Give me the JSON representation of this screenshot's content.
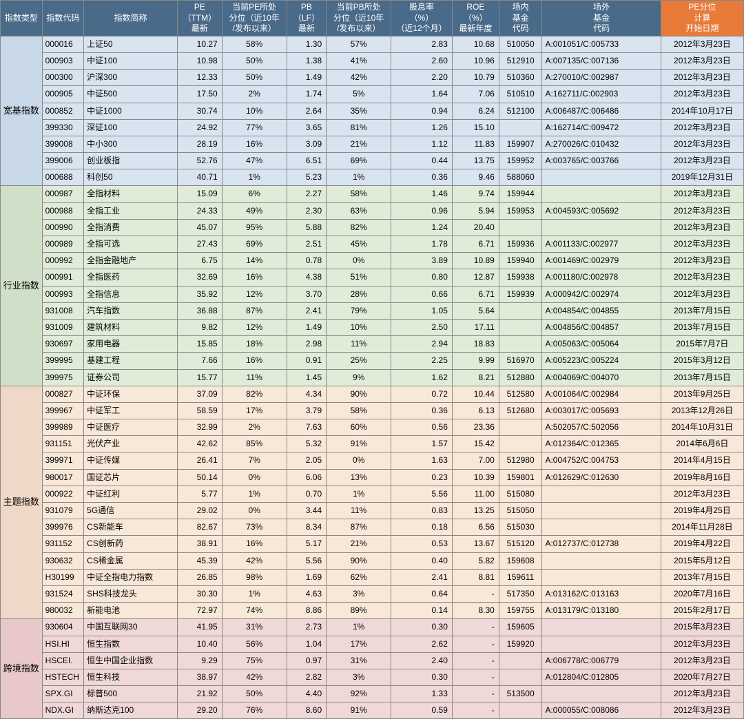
{
  "columns": [
    {
      "label": "指数类型",
      "width": 58
    },
    {
      "label": "指数代码",
      "width": 58
    },
    {
      "label": "指数简称",
      "width": 130
    },
    {
      "label": "PE\n（TTM）\n最新",
      "width": 62
    },
    {
      "label": "当前PE所处\n分位（近10年\n/发布以来）",
      "width": 90
    },
    {
      "label": "PB\n（LF）\n最新",
      "width": 55
    },
    {
      "label": "当前PB所处\n分位（近10年\n/发布以来）",
      "width": 90
    },
    {
      "label": "股息率\n（%）\n（近12个月）",
      "width": 85
    },
    {
      "label": "ROE\n（%）\n最新年度",
      "width": 65
    },
    {
      "label": "场内\n基金\n代码",
      "width": 60
    },
    {
      "label": "场外\n基金\n代码",
      "width": 165
    },
    {
      "label": "PE分位\n计算\n开始日期",
      "width": 115,
      "orange": true
    }
  ],
  "categories": [
    {
      "name": "宽基指数",
      "bg": 0,
      "rows": [
        [
          "000016",
          "上证50",
          "10.27",
          "58%",
          "1.30",
          "57%",
          "2.83",
          "10.68",
          "510050",
          "A:001051/C:005733",
          "2012年3月23日"
        ],
        [
          "000903",
          "中证100",
          "10.98",
          "50%",
          "1.38",
          "41%",
          "2.60",
          "10.96",
          "512910",
          "A:007135/C:007136",
          "2012年3月23日"
        ],
        [
          "000300",
          "沪深300",
          "12.33",
          "50%",
          "1.49",
          "42%",
          "2.20",
          "10.79",
          "510360",
          "A:270010/C:002987",
          "2012年3月23日"
        ],
        [
          "000905",
          "中证500",
          "17.50",
          "2%",
          "1.74",
          "5%",
          "1.64",
          "7.06",
          "510510",
          "A:162711/C:002903",
          "2012年3月23日"
        ],
        [
          "000852",
          "中证1000",
          "30.74",
          "10%",
          "2.64",
          "35%",
          "0.94",
          "6.24",
          "512100",
          "A:006487/C:006486",
          "2014年10月17日"
        ],
        [
          "399330",
          "深证100",
          "24.92",
          "77%",
          "3.65",
          "81%",
          "1.26",
          "15.10",
          "",
          "A:162714/C:009472",
          "2012年3月23日"
        ],
        [
          "399008",
          "中小300",
          "28.19",
          "16%",
          "3.09",
          "21%",
          "1.12",
          "11.83",
          "159907",
          "A:270026/C:010432",
          "2012年3月23日"
        ],
        [
          "399006",
          "创业板指",
          "52.76",
          "47%",
          "6.51",
          "69%",
          "0.44",
          "13.75",
          "159952",
          "A:003765/C:003766",
          "2012年3月23日"
        ],
        [
          "000688",
          "科创50",
          "40.71",
          "1%",
          "5.23",
          "1%",
          "0.36",
          "9.46",
          "588060",
          "",
          "2019年12月31日"
        ]
      ]
    },
    {
      "name": "行业指数",
      "bg": 1,
      "rows": [
        [
          "000987",
          "全指材料",
          "15.09",
          "6%",
          "2.27",
          "58%",
          "1.46",
          "9.74",
          "159944",
          "",
          "2012年3月23日"
        ],
        [
          "000988",
          "全指工业",
          "24.33",
          "49%",
          "2.30",
          "63%",
          "0.96",
          "5.94",
          "159953",
          "A:004593/C:005692",
          "2012年3月23日"
        ],
        [
          "000990",
          "全指消费",
          "45.07",
          "95%",
          "5.88",
          "82%",
          "1.24",
          "20.40",
          "",
          "",
          "2012年3月23日"
        ],
        [
          "000989",
          "全指可选",
          "27.43",
          "69%",
          "2.51",
          "45%",
          "1.78",
          "6.71",
          "159936",
          "A:001133/C:002977",
          "2012年3月23日"
        ],
        [
          "000992",
          "全指金融地产",
          "6.75",
          "14%",
          "0.78",
          "0%",
          "3.89",
          "10.89",
          "159940",
          "A:001469/C:002979",
          "2012年3月23日"
        ],
        [
          "000991",
          "全指医药",
          "32.69",
          "16%",
          "4.38",
          "51%",
          "0.80",
          "12.87",
          "159938",
          "A:001180/C:002978",
          "2012年3月23日"
        ],
        [
          "000993",
          "全指信息",
          "35.92",
          "12%",
          "3.70",
          "28%",
          "0.66",
          "6.71",
          "159939",
          "A:000942/C:002974",
          "2012年3月23日"
        ],
        [
          "931008",
          "汽车指数",
          "36.88",
          "87%",
          "2.41",
          "79%",
          "1.05",
          "5.64",
          "",
          "A:004854/C:004855",
          "2013年7月15日"
        ],
        [
          "931009",
          "建筑材料",
          "9.82",
          "12%",
          "1.49",
          "10%",
          "2.50",
          "17.11",
          "",
          "A:004856/C:004857",
          "2013年7月15日"
        ],
        [
          "930697",
          "家用电器",
          "15.85",
          "18%",
          "2.98",
          "11%",
          "2.94",
          "18.83",
          "",
          "A:005063/C:005064",
          "2015年7月7日"
        ],
        [
          "399995",
          "基建工程",
          "7.66",
          "16%",
          "0.91",
          "25%",
          "2.25",
          "9.99",
          "516970",
          "A:005223/C:005224",
          "2015年3月12日"
        ],
        [
          "399975",
          "证券公司",
          "15.77",
          "11%",
          "1.45",
          "9%",
          "1.62",
          "8.21",
          "512880",
          "A:004069/C:004070",
          "2013年7月15日"
        ]
      ]
    },
    {
      "name": "主题指数",
      "bg": 2,
      "rows": [
        [
          "000827",
          "中证环保",
          "37.09",
          "82%",
          "4.34",
          "90%",
          "0.72",
          "10.44",
          "512580",
          "A:001064/C:002984",
          "2013年9月25日"
        ],
        [
          "399967",
          "中证军工",
          "58.59",
          "17%",
          "3.79",
          "58%",
          "0.36",
          "6.13",
          "512680",
          "A:003017/C:005693",
          "2013年12月26日"
        ],
        [
          "399989",
          "中证医疗",
          "32.99",
          "2%",
          "7.63",
          "60%",
          "0.56",
          "23.36",
          "",
          "A:502057/C:502056",
          "2014年10月31日"
        ],
        [
          "931151",
          "光伏产业",
          "42.62",
          "85%",
          "5.32",
          "91%",
          "1.57",
          "15.42",
          "",
          "A:012364/C:012365",
          "2014年6月6日"
        ],
        [
          "399971",
          "中证传媒",
          "26.41",
          "7%",
          "2.05",
          "0%",
          "1.63",
          "7.00",
          "512980",
          "A:004752/C:004753",
          "2014年4月15日"
        ],
        [
          "980017",
          "国证芯片",
          "50.14",
          "0%",
          "6.06",
          "13%",
          "0.23",
          "10.39",
          "159801",
          "A:012629/C:012630",
          "2019年8月16日"
        ],
        [
          "000922",
          "中证红利",
          "5.77",
          "1%",
          "0.70",
          "1%",
          "5.56",
          "11.00",
          "515080",
          "",
          "2012年3月23日"
        ],
        [
          "931079",
          "5G通信",
          "29.02",
          "0%",
          "3.44",
          "11%",
          "0.83",
          "13.25",
          "515050",
          "",
          "2019年4月25日"
        ],
        [
          "399976",
          "CS新能车",
          "82.67",
          "73%",
          "8.34",
          "87%",
          "0.18",
          "6.56",
          "515030",
          "",
          "2014年11月28日"
        ],
        [
          "931152",
          "CS创新药",
          "38.91",
          "16%",
          "5.17",
          "21%",
          "0.53",
          "13.67",
          "515120",
          "A:012737/C:012738",
          "2019年4月22日"
        ],
        [
          "930632",
          "CS稀金属",
          "45.39",
          "42%",
          "5.56",
          "90%",
          "0.40",
          "5.82",
          "159608",
          "",
          "2015年5月12日"
        ],
        [
          "H30199",
          "中证全指电力指数",
          "26.85",
          "98%",
          "1.69",
          "62%",
          "2.41",
          "8.81",
          "159611",
          "",
          "2013年7月15日"
        ],
        [
          "931524",
          "SHS科技龙头",
          "30.30",
          "1%",
          "4.63",
          "3%",
          "0.64",
          "-",
          "517350",
          "A:013162/C:013163",
          "2020年7月16日"
        ],
        [
          "980032",
          "新能电池",
          "72.97",
          "74%",
          "8.86",
          "89%",
          "0.14",
          "8.30",
          "159755",
          "A:013179/C:013180",
          "2015年2月17日"
        ]
      ]
    },
    {
      "name": "跨境指数",
      "bg": 3,
      "rows": [
        [
          "930604",
          "中国互联网30",
          "41.95",
          "31%",
          "2.73",
          "1%",
          "0.30",
          "-",
          "159605",
          "",
          "2015年3月23日"
        ],
        [
          "HSI.HI",
          "恒生指数",
          "10.40",
          "56%",
          "1.04",
          "17%",
          "2.62",
          "-",
          "159920",
          "",
          "2012年3月23日"
        ],
        [
          "HSCEI.",
          "恒生中国企业指数",
          "9.29",
          "75%",
          "0.97",
          "31%",
          "2.40",
          "-",
          "",
          "A:006778/C:006779",
          "2012年3月23日"
        ],
        [
          "HSTECH",
          "恒生科技",
          "38.97",
          "42%",
          "2.82",
          "3%",
          "0.30",
          "-",
          "",
          "A:012804/C:012805",
          "2020年7月27日"
        ],
        [
          "SPX.GI",
          "标普500",
          "21.92",
          "50%",
          "4.40",
          "92%",
          "1.33",
          "-",
          "513500",
          "",
          "2012年3月23日"
        ],
        [
          "NDX.GI",
          "纳斯达克100",
          "29.20",
          "76%",
          "8.60",
          "91%",
          "0.59",
          "-",
          "",
          "A:000055/C:008086",
          "2012年3月23日"
        ]
      ]
    }
  ]
}
